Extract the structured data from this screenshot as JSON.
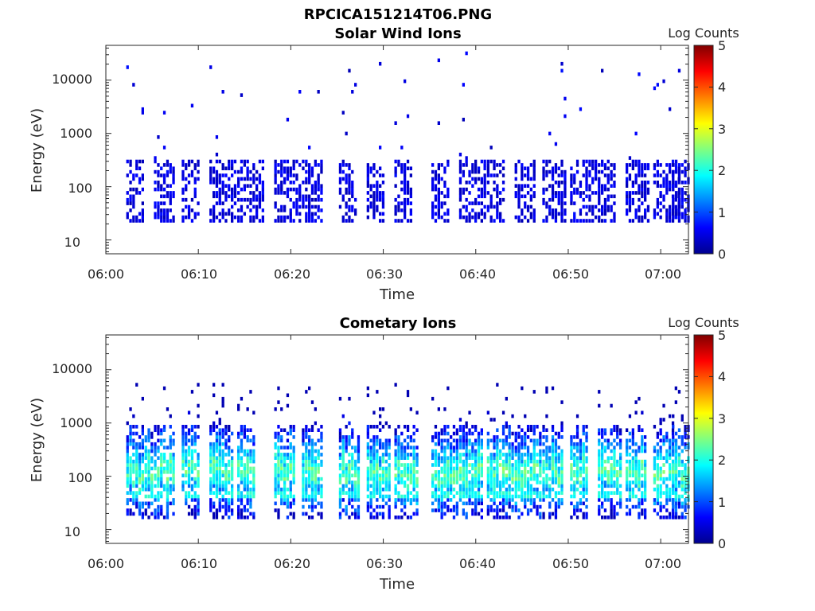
{
  "figure": {
    "filename_title": "RPCICA151214T06.PNG"
  },
  "colors": {
    "colormap": [
      "#00008f",
      "#0000ff",
      "#0080ff",
      "#00ffff",
      "#80ff80",
      "#ffff00",
      "#ff8000",
      "#ff0000",
      "#800000"
    ]
  },
  "chart_data": [
    {
      "type": "heatmap",
      "title": "Solar Wind Ions",
      "xlabel": "Time",
      "ylabel": "Energy (eV)",
      "xlim": [
        "06:00",
        "07:03"
      ],
      "x_ticks": [
        "06:00",
        "06:10",
        "06:20",
        "06:30",
        "06:40",
        "06:50",
        "07:00"
      ],
      "ylim": [
        5.5,
        45000
      ],
      "y_scale": "log",
      "y_ticks": [
        "10",
        "100",
        "1000",
        "10000"
      ],
      "colorbar": {
        "label": "Log Counts",
        "range": [
          0,
          5
        ],
        "ticks": [
          "0",
          "1",
          "2",
          "3",
          "4",
          "5"
        ]
      },
      "grid": false,
      "bursts_start_times": [
        "06:02",
        "06:05",
        "06:08",
        "06:11",
        "06:14",
        "06:18",
        "06:21",
        "06:25",
        "06:28",
        "06:31",
        "06:35",
        "06:38",
        "06:41",
        "06:44",
        "06:47",
        "06:50",
        "06:53",
        "06:56",
        "06:59",
        "07:01"
      ],
      "typical_energy_range_eV": [
        20,
        300
      ],
      "typical_log_counts": [
        0,
        0.8
      ]
    },
    {
      "type": "heatmap",
      "title": "Cometary Ions",
      "xlabel": "Time",
      "ylabel": "Energy (eV)",
      "xlim": [
        "06:00",
        "07:03"
      ],
      "x_ticks": [
        "06:00",
        "06:10",
        "06:20",
        "06:30",
        "06:40",
        "06:50",
        "07:00"
      ],
      "ylim": [
        5.5,
        45000
      ],
      "y_scale": "log",
      "y_ticks": [
        "10",
        "100",
        "1000",
        "10000"
      ],
      "colorbar": {
        "label": "Log Counts",
        "range": [
          0,
          5
        ],
        "ticks": [
          "0",
          "1",
          "2",
          "3",
          "4",
          "5"
        ]
      },
      "grid": false,
      "bursts_start_times": [
        "06:02",
        "06:05",
        "06:08",
        "06:11",
        "06:14",
        "06:18",
        "06:21",
        "06:25",
        "06:28",
        "06:31",
        "06:35",
        "06:38",
        "06:41",
        "06:44",
        "06:47",
        "06:50",
        "06:53",
        "06:56",
        "06:59",
        "07:01"
      ],
      "typical_energy_range_eV": [
        15,
        800
      ],
      "typical_log_counts": [
        0.5,
        2.5
      ]
    }
  ]
}
